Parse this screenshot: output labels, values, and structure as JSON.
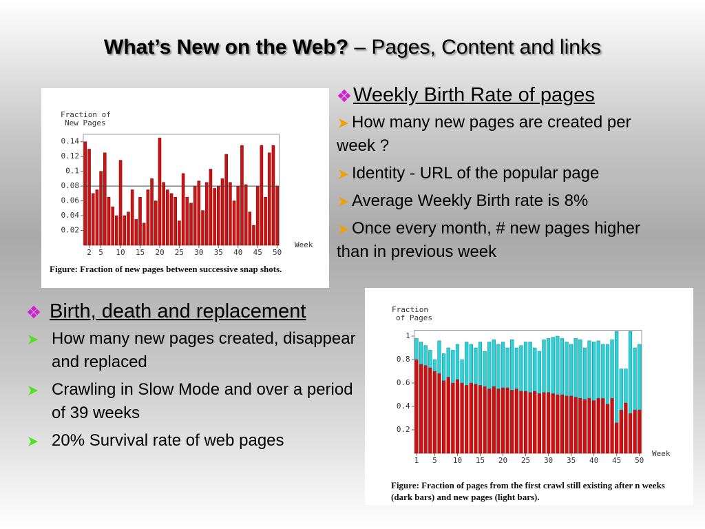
{
  "title": {
    "main": "What’s New on the Web?",
    "sub": " – Pages, Content and links"
  },
  "sections": [
    {
      "heading": "Weekly Birth Rate of pages",
      "items": [
        "How many new pages are created per week ?",
        "Identity - URL of the popular page",
        "Average Weekly Birth rate is 8%",
        "Once every month, # new pages higher than in previous week"
      ]
    },
    {
      "heading": "Birth, death and replacement",
      "items": [
        "How many new pages created, disappear and replaced",
        "Crawling in Slow Mode and over a period of 39 weeks",
        "20% Survival rate of web pages"
      ]
    }
  ],
  "chart_data": [
    {
      "type": "bar",
      "y_label": [
        "Fraction of",
        "New Pages"
      ],
      "x_label": "Week",
      "caption": {
        "label": "Figure",
        "text": ": Fraction of new pages between successive snap shots."
      },
      "x": [
        1,
        2,
        3,
        4,
        5,
        6,
        7,
        8,
        9,
        10,
        11,
        12,
        13,
        14,
        15,
        16,
        17,
        18,
        19,
        20,
        21,
        22,
        23,
        24,
        25,
        26,
        27,
        28,
        29,
        30,
        31,
        32,
        33,
        34,
        35,
        36,
        37,
        38,
        39,
        40,
        41,
        42,
        43,
        44,
        45,
        46,
        47,
        48,
        49,
        50
      ],
      "values": [
        0.14,
        0.13,
        0.07,
        0.075,
        0.1,
        0.125,
        0.065,
        0.052,
        0.04,
        0.115,
        0.04,
        0.045,
        0.075,
        0.035,
        0.065,
        0.03,
        0.075,
        0.09,
        0.06,
        0.145,
        0.085,
        0.075,
        0.07,
        0.065,
        0.033,
        0.097,
        0.065,
        0.057,
        0.08,
        0.087,
        0.047,
        0.085,
        0.103,
        0.077,
        0.08,
        0.09,
        0.123,
        0.085,
        0.06,
        0.08,
        0.135,
        0.082,
        0.045,
        0.027,
        0.08,
        0.135,
        0.065,
        0.125,
        0.135,
        0.08
      ],
      "color": "#c81414",
      "reference_line": 0.08,
      "xlim": [
        0.5,
        50.5
      ],
      "xticks": [
        2,
        5,
        10,
        15,
        20,
        25,
        30,
        35,
        40,
        45,
        50
      ],
      "ylim": [
        0,
        0.15
      ],
      "yticks": [
        0.02,
        0.04,
        0.06,
        0.08,
        0.1,
        0.12,
        0.14
      ]
    },
    {
      "type": "stacked_bar",
      "y_label": [
        "Fraction",
        "of Pages"
      ],
      "x_label": "Week",
      "caption": {
        "label": "Figure",
        "text": ": Fraction of pages from the first crawl still existing after n weeks (dark bars) and new pages (light bars)."
      },
      "x": [
        1,
        2,
        3,
        4,
        5,
        6,
        7,
        8,
        9,
        10,
        11,
        12,
        13,
        14,
        15,
        16,
        17,
        18,
        19,
        20,
        21,
        22,
        23,
        24,
        25,
        26,
        27,
        28,
        29,
        30,
        31,
        32,
        33,
        34,
        35,
        36,
        37,
        38,
        39,
        40,
        41,
        42,
        43,
        44,
        45,
        46,
        47,
        48,
        49,
        50
      ],
      "series": [
        {
          "color": "#d01010",
          "values": [
            0.8,
            0.76,
            0.75,
            0.73,
            0.7,
            0.68,
            0.62,
            0.65,
            0.6,
            0.63,
            0.6,
            0.58,
            0.6,
            0.59,
            0.58,
            0.57,
            0.55,
            0.57,
            0.55,
            0.56,
            0.56,
            0.54,
            0.55,
            0.53,
            0.53,
            0.52,
            0.53,
            0.51,
            0.52,
            0.52,
            0.51,
            0.5,
            0.5,
            0.49,
            0.49,
            0.48,
            0.47,
            0.46,
            0.47,
            0.45,
            0.47,
            0.47,
            0.42,
            0.47,
            0.26,
            0.37,
            0.43,
            0.34,
            0.37,
            0.37
          ]
        },
        {
          "color": "#30d0d8",
          "values": [
            0.18,
            0.19,
            0.17,
            0.15,
            0.1,
            0.28,
            0.23,
            0.25,
            0.28,
            0.3,
            0.2,
            0.37,
            0.33,
            0.31,
            0.37,
            0.3,
            0.4,
            0.4,
            0.38,
            0.39,
            0.34,
            0.43,
            0.35,
            0.39,
            0.42,
            0.43,
            0.37,
            0.36,
            0.45,
            0.46,
            0.48,
            0.5,
            0.48,
            0.46,
            0.44,
            0.5,
            0.5,
            0.44,
            0.49,
            0.5,
            0.49,
            0.46,
            0.51,
            0.5,
            0.78,
            0.35,
            0.29,
            0.7,
            0.53,
            0.56
          ]
        }
      ],
      "xlim": [
        0.5,
        50.5
      ],
      "xticks": [
        1,
        5,
        10,
        15,
        20,
        25,
        30,
        35,
        40,
        45,
        50
      ],
      "ylim": [
        0,
        1.05
      ],
      "yticks": [
        0.2,
        0.4,
        0.6,
        0.8,
        1
      ]
    }
  ]
}
